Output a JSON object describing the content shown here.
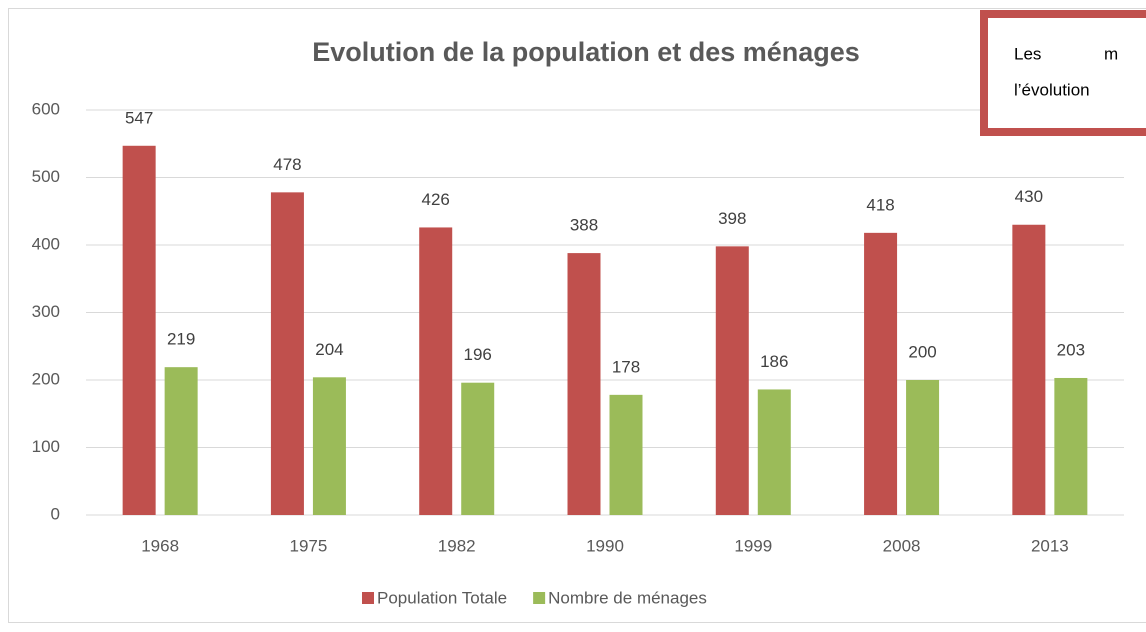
{
  "chart_data": {
    "type": "bar",
    "title": "Evolution de la population et des ménages",
    "categories": [
      "1968",
      "1975",
      "1982",
      "1990",
      "1999",
      "2008",
      "2013"
    ],
    "series": [
      {
        "name": "Population Totale",
        "color": "#c0504d",
        "values": [
          547,
          478,
          426,
          388,
          398,
          418,
          430
        ]
      },
      {
        "name": "Nombre de ménages",
        "color": "#9bbb59",
        "values": [
          219,
          204,
          196,
          178,
          186,
          200,
          203
        ]
      }
    ],
    "ylim": [
      0,
      600
    ],
    "yticks": [
      0,
      100,
      200,
      300,
      400,
      500,
      600
    ],
    "grid": true,
    "legend": "bottom"
  },
  "text_box": {
    "lines": [
      [
        "Les",
        "m"
      ],
      [
        "l’évolution"
      ]
    ]
  }
}
